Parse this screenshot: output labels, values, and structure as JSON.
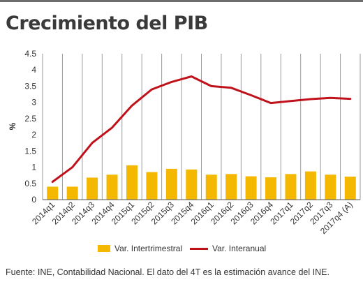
{
  "title": "Crecimiento del PIB",
  "source": "Fuente: INE, Contabilidad Nacional. El dato del 4T es la estimación avance del INE.",
  "chart_data": {
    "type": "bar+line",
    "title": "Crecimiento del PIB",
    "ylabel": "%",
    "xlabel": "",
    "ylim": [
      0,
      4.5
    ],
    "yticks": [
      "0",
      "0.5",
      "1",
      "1.5",
      "2",
      "2.5",
      "3",
      "3.5",
      "4",
      "4.5"
    ],
    "categories": [
      "2014q1",
      "2014q2",
      "2014q3",
      "2014q4",
      "2015q1",
      "2015q2",
      "2015q3",
      "2015q4",
      "2016q1",
      "2016q2",
      "2016q3",
      "2016q4",
      "2017q1",
      "2017q2",
      "2017q3",
      "2017q4 (A)"
    ],
    "grid": "vertical",
    "legend_position": "bottom",
    "series": [
      {
        "name": "Var. Intertrimestral",
        "type": "bar",
        "color": "#f5b800",
        "values": [
          0.4,
          0.4,
          0.68,
          0.77,
          1.06,
          0.85,
          0.95,
          0.93,
          0.77,
          0.79,
          0.72,
          0.69,
          0.79,
          0.87,
          0.77,
          0.71
        ]
      },
      {
        "name": "Var. Interanual",
        "type": "line",
        "color": "#c0121a",
        "values": [
          0.55,
          1.0,
          1.75,
          2.22,
          2.9,
          3.4,
          3.63,
          3.8,
          3.5,
          3.45,
          3.22,
          2.98,
          3.04,
          3.1,
          3.14,
          3.11
        ]
      }
    ]
  }
}
